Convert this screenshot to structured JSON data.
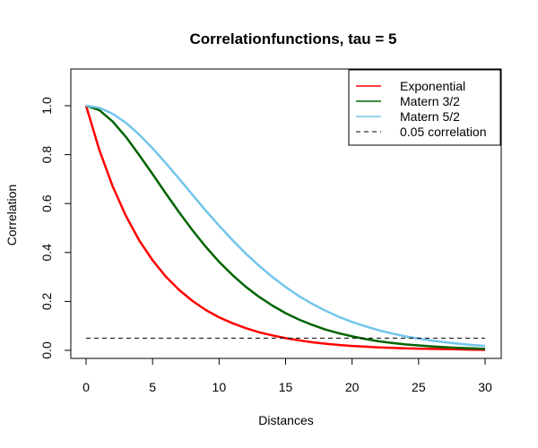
{
  "chart_data": {
    "type": "line",
    "title": "Correlationfunctions, tau = 5",
    "xlabel": "Distances",
    "ylabel": "Correlation",
    "xlim": [
      0,
      30
    ],
    "ylim": [
      0,
      1.1
    ],
    "x_ticks": [
      "0",
      "5",
      "10",
      "15",
      "20",
      "25",
      "30"
    ],
    "y_ticks": [
      "0.0",
      "0.2",
      "0.4",
      "0.6",
      "0.8",
      "1.0"
    ],
    "grid": false,
    "legend_position": "top-right",
    "x": [
      0,
      1,
      2,
      3,
      4,
      5,
      6,
      7,
      8,
      9,
      10,
      11,
      12,
      13,
      14,
      15,
      16,
      17,
      18,
      19,
      20,
      21,
      22,
      23,
      24,
      25,
      26,
      27,
      28,
      29,
      30
    ],
    "series": [
      {
        "name": "Exponential",
        "color": "#ff0000",
        "values": [
          1.0,
          0.819,
          0.67,
          0.549,
          0.449,
          0.368,
          0.301,
          0.247,
          0.202,
          0.165,
          0.135,
          0.111,
          0.091,
          0.074,
          0.061,
          0.05,
          0.041,
          0.033,
          0.027,
          0.022,
          0.018,
          0.015,
          0.012,
          0.01,
          0.008,
          0.007,
          0.006,
          0.005,
          0.004,
          0.003,
          0.002
        ]
      },
      {
        "name": "Matern 3/2",
        "color": "#006400",
        "values": [
          1.0,
          0.982,
          0.935,
          0.872,
          0.798,
          0.72,
          0.641,
          0.564,
          0.491,
          0.423,
          0.362,
          0.308,
          0.26,
          0.219,
          0.183,
          0.152,
          0.126,
          0.104,
          0.085,
          0.07,
          0.057,
          0.046,
          0.037,
          0.03,
          0.024,
          0.02,
          0.016,
          0.013,
          0.01,
          0.008,
          0.006
        ]
      },
      {
        "name": "Matern 5/2",
        "color": "#72c5ea",
        "values": [
          1.0,
          0.992,
          0.967,
          0.93,
          0.882,
          0.826,
          0.765,
          0.701,
          0.636,
          0.571,
          0.51,
          0.451,
          0.396,
          0.346,
          0.3,
          0.259,
          0.222,
          0.19,
          0.162,
          0.137,
          0.116,
          0.098,
          0.082,
          0.069,
          0.057,
          0.048,
          0.04,
          0.033,
          0.027,
          0.022,
          0.018
        ]
      },
      {
        "name": "0.05 correlation",
        "color": "#000000",
        "dashed": true,
        "values": [
          0.05,
          0.05,
          0.05,
          0.05,
          0.05,
          0.05,
          0.05,
          0.05,
          0.05,
          0.05,
          0.05,
          0.05,
          0.05,
          0.05,
          0.05,
          0.05,
          0.05,
          0.05,
          0.05,
          0.05,
          0.05,
          0.05,
          0.05,
          0.05,
          0.05,
          0.05,
          0.05,
          0.05,
          0.05,
          0.05,
          0.05
        ]
      }
    ]
  }
}
